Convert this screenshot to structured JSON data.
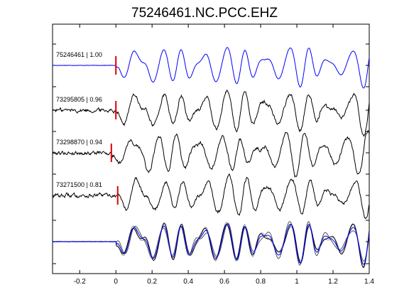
{
  "chart_data": {
    "type": "line",
    "title": "75246461.NC.PCC.EHZ",
    "xlabel": "",
    "ylabel": "",
    "xlim": [
      -0.35,
      1.4
    ],
    "ylim": [
      0,
      1
    ],
    "grid": false,
    "legend": "none",
    "x_ticks": [
      -0.2,
      0,
      0.2,
      0.4,
      0.6,
      0.8,
      1,
      1.2,
      1.4
    ],
    "x_tick_labels": [
      "-0.2",
      "0",
      "0.2",
      "0.4",
      "0.6",
      "0.8",
      "1",
      "1.2",
      "1.4"
    ],
    "pick_time": 0,
    "traces": [
      {
        "label": "75246461 | 1.00",
        "color": "#0000ff",
        "pick_offset": 0,
        "baseline": "flat"
      },
      {
        "label": "73295805 | 0.96",
        "color": "#000000",
        "pick_offset": 0,
        "baseline": "noisy"
      },
      {
        "label": "73298870 | 0.94",
        "color": "#000000",
        "pick_offset": -0.025,
        "baseline": "noisy"
      },
      {
        "label": "73271500 | 0.81",
        "color": "#000000",
        "pick_offset": 0.01,
        "baseline": "noisy"
      }
    ],
    "stack": {
      "colors": [
        "#0000ff",
        "#000000",
        "#555555",
        "#999999"
      ]
    },
    "pick_color": "#dd0000"
  }
}
